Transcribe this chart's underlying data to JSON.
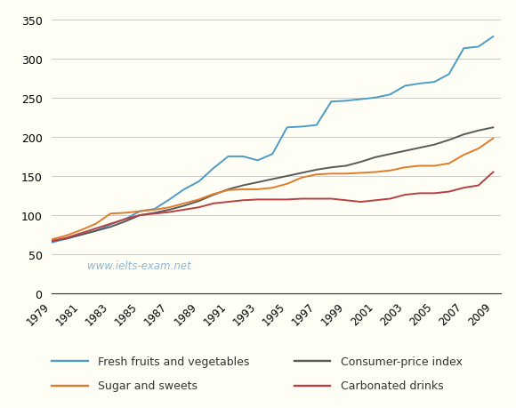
{
  "years": [
    1979,
    1980,
    1981,
    1982,
    1983,
    1984,
    1985,
    1986,
    1987,
    1988,
    1989,
    1990,
    1991,
    1992,
    1993,
    1994,
    1995,
    1996,
    1997,
    1998,
    1999,
    2000,
    2001,
    2002,
    2003,
    2004,
    2005,
    2006,
    2007,
    2008,
    2009
  ],
  "fresh_fruits_veg": [
    65,
    70,
    75,
    80,
    88,
    95,
    105,
    108,
    120,
    133,
    143,
    160,
    175,
    175,
    170,
    178,
    212,
    213,
    215,
    245,
    246,
    248,
    250,
    254,
    265,
    268,
    270,
    280,
    313,
    315,
    328
  ],
  "consumer_price": [
    67,
    70,
    75,
    80,
    85,
    92,
    100,
    103,
    107,
    112,
    118,
    126,
    133,
    138,
    142,
    146,
    150,
    154,
    158,
    161,
    163,
    168,
    174,
    178,
    182,
    186,
    190,
    196,
    203,
    208,
    212
  ],
  "sugar_sweets": [
    69,
    74,
    81,
    89,
    102,
    103,
    105,
    107,
    110,
    115,
    120,
    127,
    132,
    133,
    133,
    135,
    140,
    148,
    152,
    153,
    153,
    154,
    155,
    157,
    161,
    163,
    163,
    166,
    177,
    185,
    198
  ],
  "carbonated_drinks": [
    67,
    71,
    77,
    83,
    89,
    95,
    100,
    102,
    104,
    107,
    110,
    115,
    117,
    119,
    120,
    120,
    120,
    121,
    121,
    121,
    119,
    117,
    119,
    121,
    126,
    128,
    128,
    130,
    135,
    138,
    155
  ],
  "fresh_color": "#4D9CC7",
  "consumer_color": "#595959",
  "sugar_color": "#E07B2A",
  "carbonated_color": "#B84040",
  "fig_bg_color": "#FEFEF5",
  "plot_bg_color": "#FEFEF5",
  "watermark": "www.ielts-exam.net",
  "yticks": [
    0,
    50,
    100,
    150,
    200,
    250,
    300,
    350
  ],
  "xtick_labels": [
    "1979",
    "1981",
    "1983",
    "1985",
    "1987",
    "1989",
    "1991",
    "1993",
    "1995",
    "1997",
    "1999",
    "2001",
    "2003",
    "2005",
    "2007",
    "2009"
  ],
  "xtick_positions": [
    1979,
    1981,
    1983,
    1985,
    1987,
    1989,
    1991,
    1993,
    1995,
    1997,
    1999,
    2001,
    2003,
    2005,
    2007,
    2009
  ],
  "legend_row1": [
    "Fresh fruits and vegetables",
    "Consumer-price index"
  ],
  "legend_row2": [
    "Sugar and sweets",
    "Carbonated drinks"
  ]
}
